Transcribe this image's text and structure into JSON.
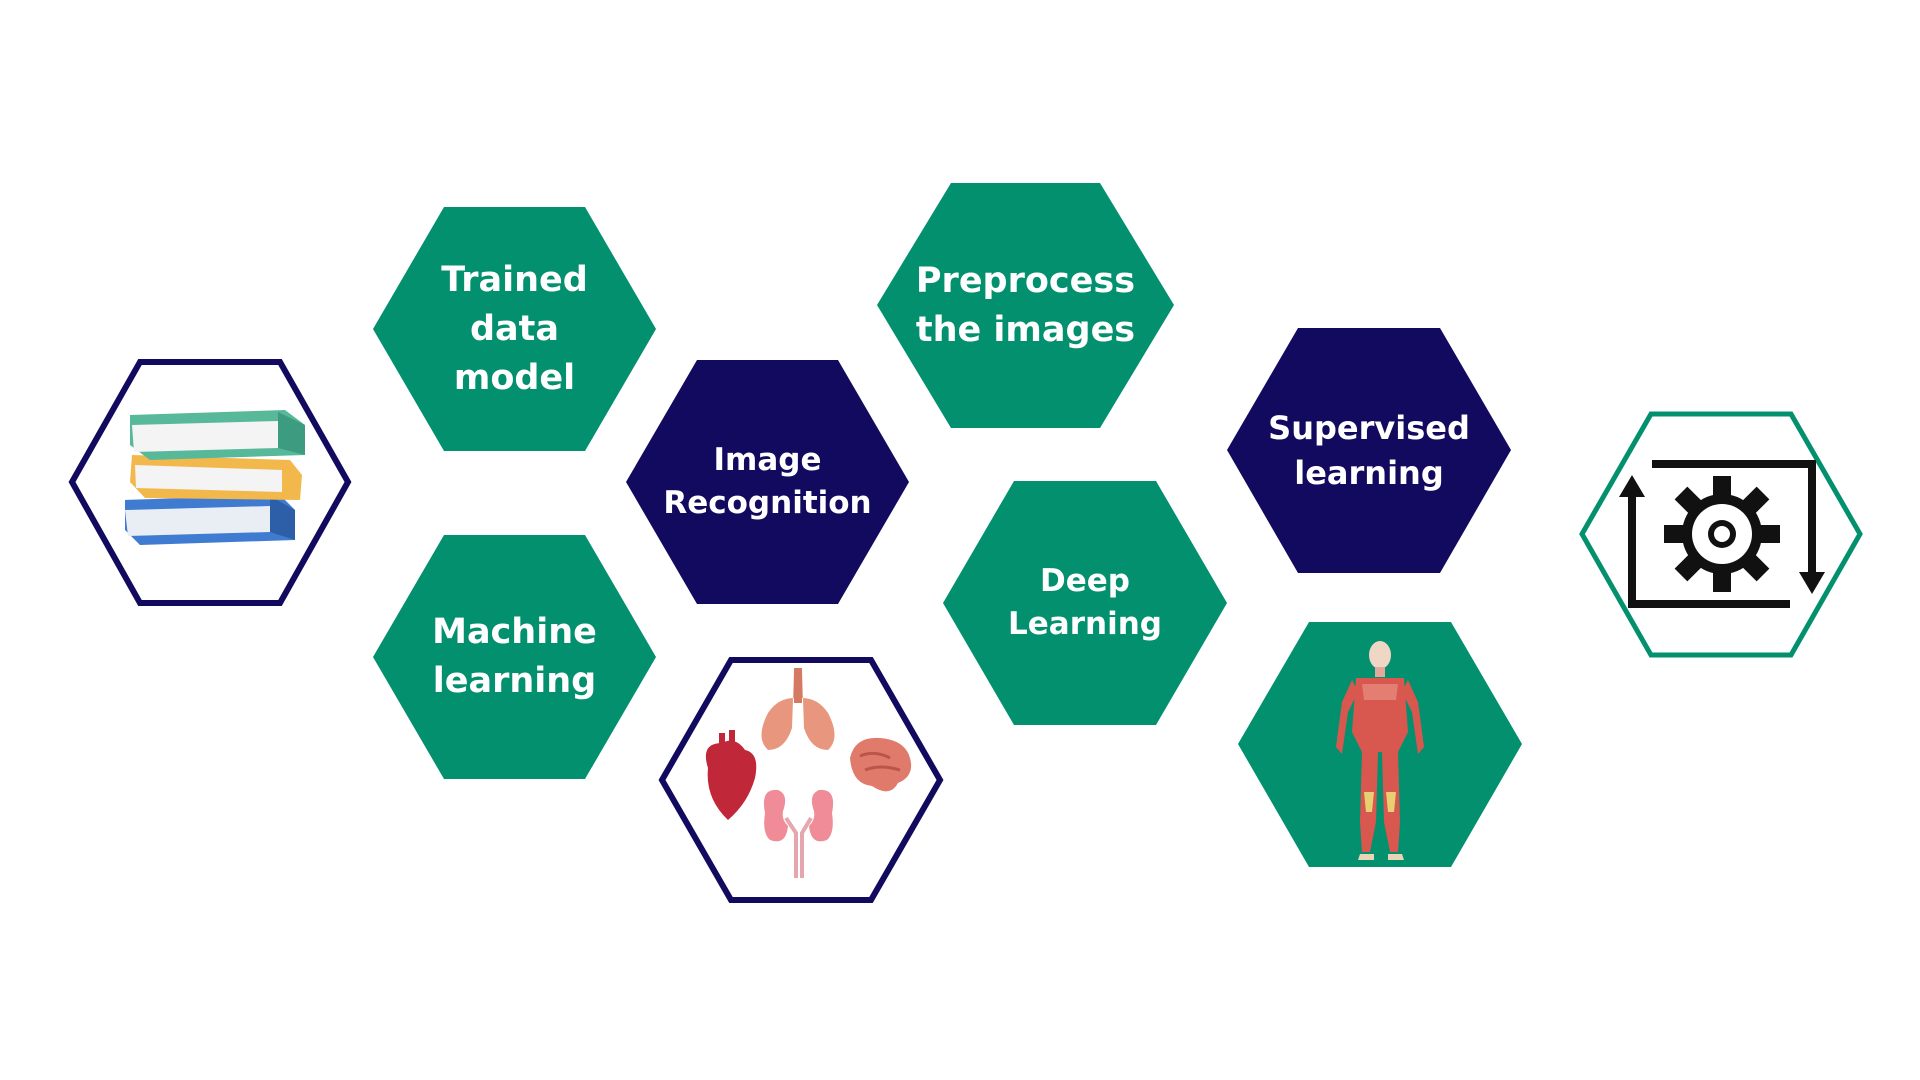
{
  "colors": {
    "green": "#03906e",
    "navy": "#120a5e",
    "white": "#ffffff",
    "outline_navy": "#120a5e",
    "outline_green": "#03906e"
  },
  "hexagons": {
    "trained_data_model": {
      "label": "Trained\ndata\nmodel"
    },
    "machine_learning": {
      "label": "Machine\nlearning"
    },
    "image_recognition": {
      "label": "Image\nRecognition"
    },
    "preprocess_images": {
      "label": "Preprocess\nthe images"
    },
    "deep_learning": {
      "label": "Deep\nLearning"
    },
    "supervised_learning": {
      "label": "Supervised\nlearning"
    }
  },
  "icons": {
    "books": "books-icon",
    "organs": "organs-icon",
    "anatomy": "human-anatomy-icon",
    "gear_cycle": "gear-cycle-icon"
  }
}
